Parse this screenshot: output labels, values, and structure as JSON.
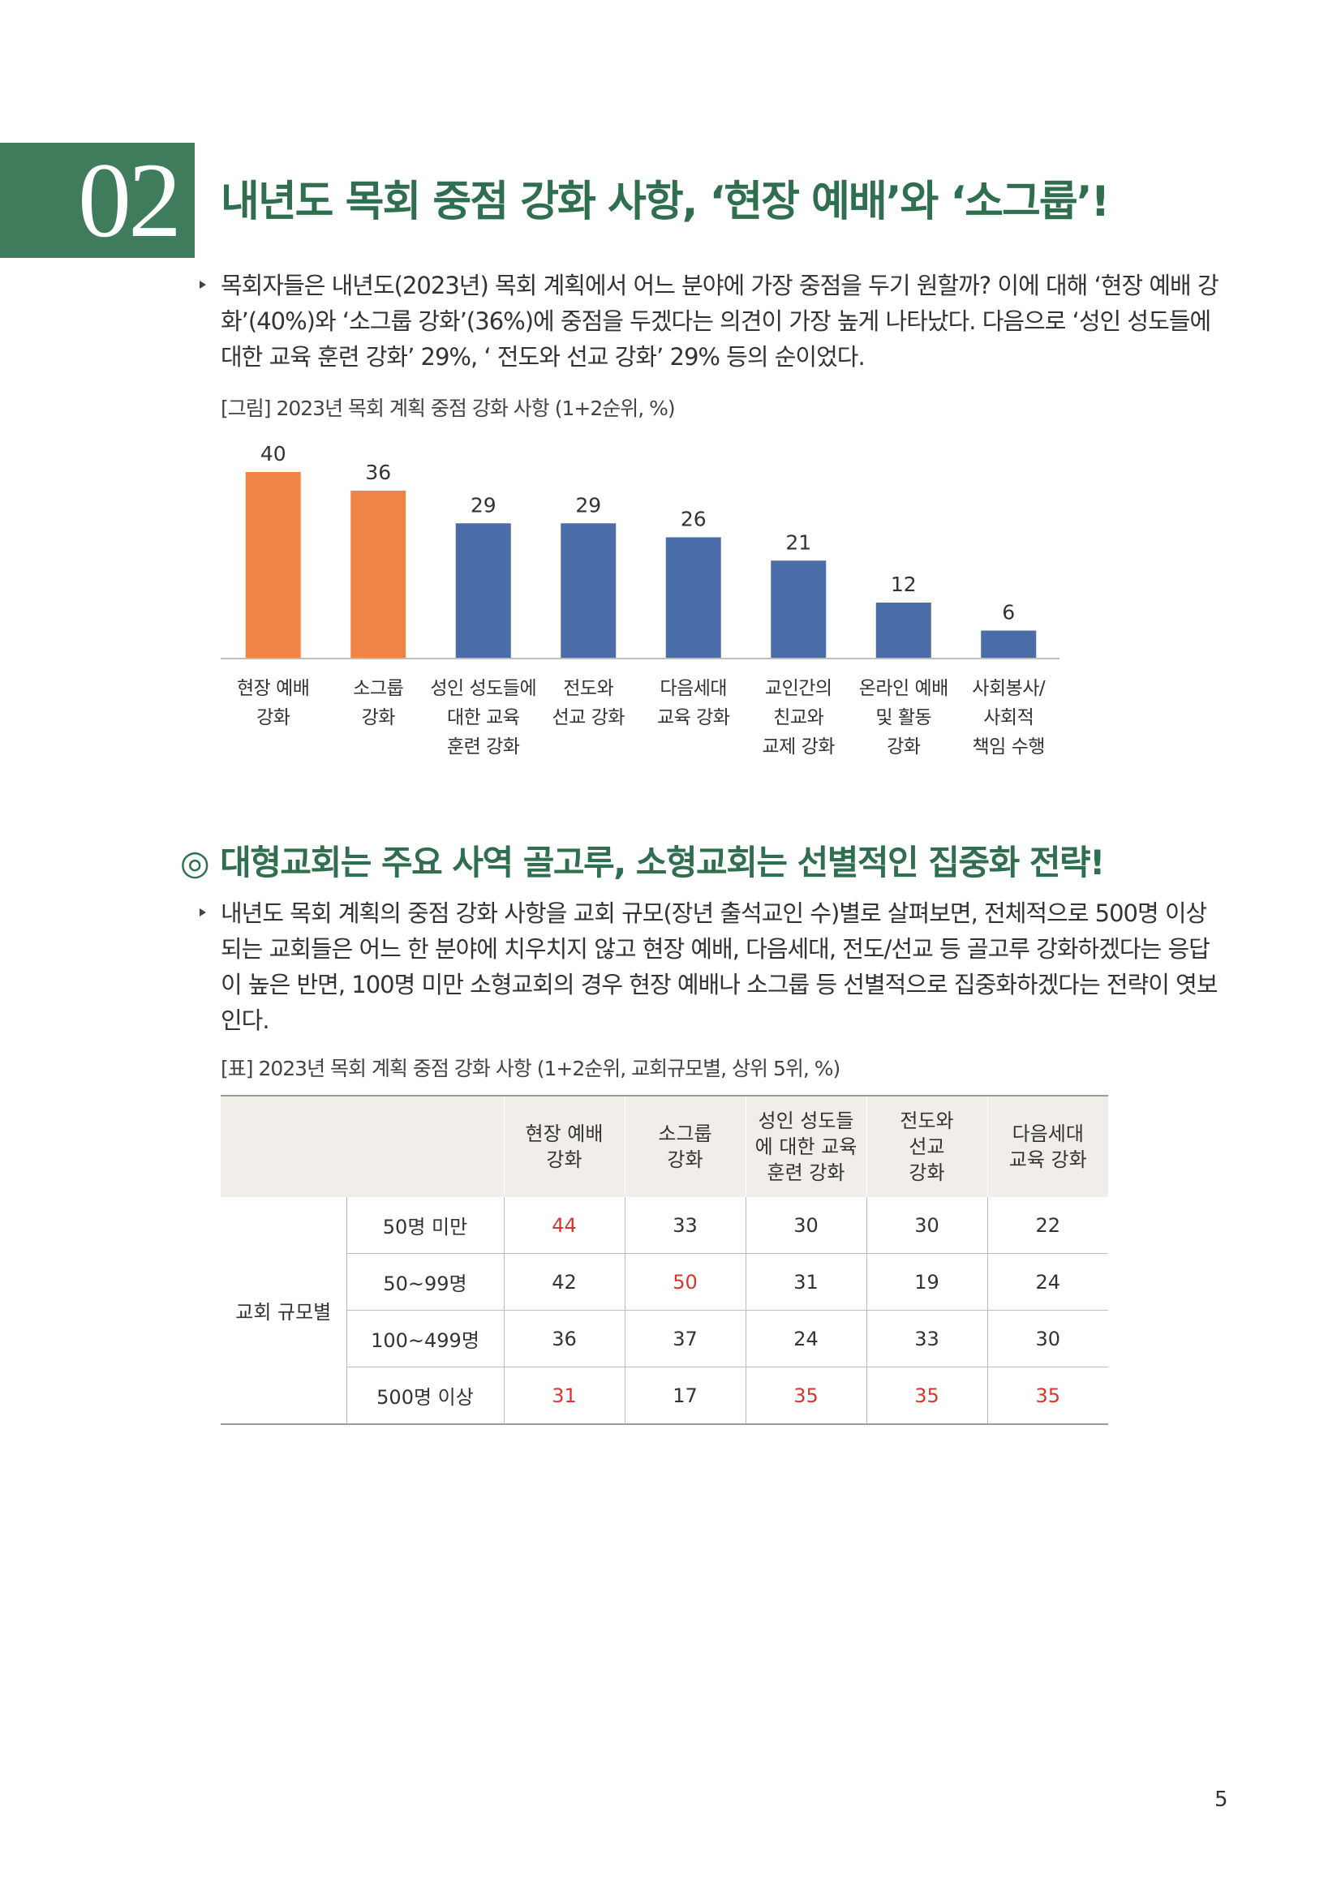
{
  "section": {
    "number": "02",
    "title": "내년도 목회 중점 강화 사항, ‘현장 예배’와 ‘소그룹’!"
  },
  "para1": "목회자들은 내년도(2023년) 목회 계획에서 어느 분야에 가장 중점을 두기 원할까? 이에 대해 ‘현장 예배 강화’(40%)와 ‘소그룹 강화’(36%)에 중점을 두겠다는 의견이 가장 높게 나타났다. 다음으로 ‘성인 성도들에 대한 교육 훈련 강화’ 29%, ‘ 전도와 선교 강화’ 29% 등의 순이었다.",
  "figure_caption": "[그림] 2023년 목회 계획 중점 강화 사항 (1+2순위, %)",
  "chart_data": {
    "type": "bar",
    "title": "[그림] 2023년 목회 계획 중점 강화 사항 (1+2순위, %)",
    "categories": [
      [
        "현장 예배",
        "강화"
      ],
      [
        "소그룹",
        "강화"
      ],
      [
        "성인 성도들에",
        "대한 교육",
        "훈련 강화"
      ],
      [
        "전도와",
        "선교 강화"
      ],
      [
        "다음세대",
        "교육 강화"
      ],
      [
        "교인간의",
        "친교와",
        "교제 강화"
      ],
      [
        "온라인 예배",
        "및 활동",
        "강화"
      ],
      [
        "사회봉사/",
        "사회적",
        "책임 수행"
      ]
    ],
    "values": [
      40,
      36,
      29,
      29,
      26,
      21,
      12,
      6
    ],
    "colors": [
      "#f08447",
      "#f08447",
      "#4a6da7",
      "#4a6da7",
      "#4a6da7",
      "#4a6da7",
      "#4a6da7",
      "#4a6da7"
    ],
    "ylim": [
      0,
      40
    ],
    "xlabel": "",
    "ylabel": "",
    "grid": false,
    "data_labels": true
  },
  "subsection_mark": "◎",
  "subsection_title": "대형교회는 주요 사역 골고루, 소형교회는 선별적인 집중화 전략!",
  "para2": "내년도 목회 계획의 중점 강화 사항을 교회 규모(장년 출석교인 수)별로 살펴보면, 전체적으로 500명 이상 되는 교회들은 어느 한 분야에 치우치지 않고 현장 예배, 다음세대, 전도/선교 등 골고루 강화하겠다는 응답이 높은 반면, 100명 미만 소형교회의 경우 현장 예배나 소그룹 등 선별적으로 집중화하겠다는 전략이 엿보인다.",
  "table_caption": "[표] 2023년 목회 계획 중점 강화 사항 (1+2순위, 교회규모별, 상위 5위, %)",
  "table": {
    "headers": [
      [
        "현장 예배",
        "강화"
      ],
      [
        "소그룹",
        "강화"
      ],
      [
        "성인 성도들",
        "에 대한 교육",
        "훈련 강화"
      ],
      [
        "전도와",
        "선교",
        "강화"
      ],
      [
        "다음세대",
        "교육 강화"
      ]
    ],
    "group_label": "교회 규모별",
    "rows": [
      {
        "label": "50명 미만",
        "values": [
          "44",
          "33",
          "30",
          "30",
          "22"
        ],
        "highlight": [
          true,
          false,
          false,
          false,
          false
        ]
      },
      {
        "label": "50~99명",
        "values": [
          "42",
          "50",
          "31",
          "19",
          "24"
        ],
        "highlight": [
          false,
          true,
          false,
          false,
          false
        ]
      },
      {
        "label": "100~499명",
        "values": [
          "36",
          "37",
          "24",
          "33",
          "30"
        ],
        "highlight": [
          false,
          false,
          false,
          false,
          false
        ]
      },
      {
        "label": "500명 이상",
        "values": [
          "31",
          "17",
          "35",
          "35",
          "35"
        ],
        "highlight": [
          true,
          false,
          true,
          true,
          true
        ]
      }
    ],
    "highlight_color": "#d7362f"
  },
  "page_number": "5"
}
